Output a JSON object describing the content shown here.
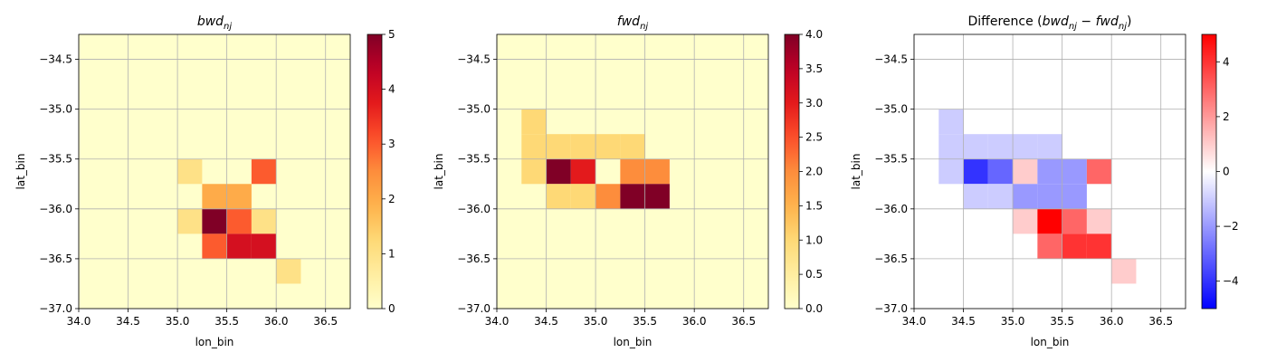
{
  "chart_data": [
    {
      "type": "heatmap",
      "title": "bwd_nj",
      "title_main": "bwd",
      "title_sub": "nj",
      "title_suffix": "",
      "xlabel": "lon_bin",
      "ylabel": "lat_bin",
      "xlim": [
        34.0,
        36.75
      ],
      "ylim": [
        -37.0,
        -34.25
      ],
      "bin_size": 0.25,
      "xticks": [
        34.0,
        34.5,
        35.0,
        35.5,
        36.0,
        36.5
      ],
      "xtick_labels": [
        "34.0",
        "34.5",
        "35.0",
        "35.5",
        "36.0",
        "36.5"
      ],
      "yticks": [
        -34.5,
        -35.0,
        -35.5,
        -36.0,
        -36.5,
        -37.0
      ],
      "ytick_labels": [
        "−34.5",
        "−35.0",
        "−35.5",
        "−36.0",
        "−36.5",
        "−37.0"
      ],
      "colormap": "YlOrRd",
      "vmin": 0,
      "vmax": 5,
      "colorbar_ticks": [
        0,
        1,
        2,
        3,
        4,
        5
      ],
      "colorbar_tick_labels": [
        "0",
        "1",
        "2",
        "3",
        "4",
        "5"
      ],
      "grid": true,
      "background_value": 0,
      "cells": [
        {
          "lon": 35.0,
          "lat": -35.5,
          "value": 1
        },
        {
          "lon": 35.75,
          "lat": -35.5,
          "value": 3
        },
        {
          "lon": 35.25,
          "lat": -35.75,
          "value": 2
        },
        {
          "lon": 35.5,
          "lat": -35.75,
          "value": 2
        },
        {
          "lon": 35.0,
          "lat": -36.0,
          "value": 1
        },
        {
          "lon": 35.25,
          "lat": -36.0,
          "value": 5
        },
        {
          "lon": 35.5,
          "lat": -36.0,
          "value": 3
        },
        {
          "lon": 35.75,
          "lat": -36.0,
          "value": 1
        },
        {
          "lon": 35.25,
          "lat": -36.25,
          "value": 3
        },
        {
          "lon": 35.5,
          "lat": -36.25,
          "value": 4
        },
        {
          "lon": 35.75,
          "lat": -36.25,
          "value": 4
        },
        {
          "lon": 36.0,
          "lat": -36.5,
          "value": 1
        }
      ]
    },
    {
      "type": "heatmap",
      "title": "fwd_nj",
      "title_main": "fwd",
      "title_sub": "nj",
      "title_suffix": "",
      "xlabel": "lon_bin",
      "ylabel": "lat_bin",
      "xlim": [
        34.0,
        36.75
      ],
      "ylim": [
        -37.0,
        -34.25
      ],
      "bin_size": 0.25,
      "xticks": [
        34.0,
        34.5,
        35.0,
        35.5,
        36.0,
        36.5
      ],
      "xtick_labels": [
        "34.0",
        "34.5",
        "35.0",
        "35.5",
        "36.0",
        "36.5"
      ],
      "yticks": [
        -34.5,
        -35.0,
        -35.5,
        -36.0,
        -36.5,
        -37.0
      ],
      "ytick_labels": [
        "−34.5",
        "−35.0",
        "−35.5",
        "−36.0",
        "−36.5",
        "−37.0"
      ],
      "colormap": "YlOrRd",
      "vmin": 0,
      "vmax": 4,
      "colorbar_ticks": [
        0,
        0.5,
        1,
        1.5,
        2,
        2.5,
        3,
        3.5,
        4
      ],
      "colorbar_tick_labels": [
        "0.0",
        "0.5",
        "1.0",
        "1.5",
        "2.0",
        "2.5",
        "3.0",
        "3.5",
        "4.0"
      ],
      "grid": true,
      "background_value": 0,
      "cells": [
        {
          "lon": 34.25,
          "lat": -35.0,
          "value": 1
        },
        {
          "lon": 34.25,
          "lat": -35.25,
          "value": 1
        },
        {
          "lon": 34.5,
          "lat": -35.25,
          "value": 1
        },
        {
          "lon": 34.75,
          "lat": -35.25,
          "value": 1
        },
        {
          "lon": 35.0,
          "lat": -35.25,
          "value": 1
        },
        {
          "lon": 35.25,
          "lat": -35.25,
          "value": 1
        },
        {
          "lon": 34.25,
          "lat": -35.5,
          "value": 1
        },
        {
          "lon": 34.5,
          "lat": -35.5,
          "value": 4
        },
        {
          "lon": 34.75,
          "lat": -35.5,
          "value": 3
        },
        {
          "lon": 35.25,
          "lat": -35.5,
          "value": 2
        },
        {
          "lon": 35.5,
          "lat": -35.5,
          "value": 2
        },
        {
          "lon": 34.5,
          "lat": -35.75,
          "value": 1
        },
        {
          "lon": 34.75,
          "lat": -35.75,
          "value": 1
        },
        {
          "lon": 35.0,
          "lat": -35.75,
          "value": 2
        },
        {
          "lon": 35.25,
          "lat": -35.75,
          "value": 4
        },
        {
          "lon": 35.5,
          "lat": -35.75,
          "value": 4
        }
      ]
    },
    {
      "type": "heatmap",
      "title": "Difference (bwd_nj − fwd_nj)",
      "title_main": "Difference (",
      "title_sub": "",
      "title_suffix": "",
      "xlabel": "lon_bin",
      "ylabel": "lat_bin",
      "xlim": [
        34.0,
        36.75
      ],
      "ylim": [
        -37.0,
        -34.25
      ],
      "bin_size": 0.25,
      "xticks": [
        34.0,
        34.5,
        35.0,
        35.5,
        36.0,
        36.5
      ],
      "xtick_labels": [
        "34.0",
        "34.5",
        "35.0",
        "35.5",
        "36.0",
        "36.5"
      ],
      "yticks": [
        -34.5,
        -35.0,
        -35.5,
        -36.0,
        -36.5,
        -37.0
      ],
      "ytick_labels": [
        "−34.5",
        "−35.0",
        "−35.5",
        "−36.0",
        "−36.5",
        "−37.0"
      ],
      "colormap": "bwr",
      "vmin": -5,
      "vmax": 5,
      "colorbar_ticks": [
        -4,
        -2,
        0,
        2,
        4
      ],
      "colorbar_tick_labels": [
        "−4",
        "−2",
        "0",
        "2",
        "4"
      ],
      "grid": true,
      "background_value": 0,
      "cells": [
        {
          "lon": 34.25,
          "lat": -35.0,
          "value": -1
        },
        {
          "lon": 34.25,
          "lat": -35.25,
          "value": -1
        },
        {
          "lon": 34.5,
          "lat": -35.25,
          "value": -1
        },
        {
          "lon": 34.75,
          "lat": -35.25,
          "value": -1
        },
        {
          "lon": 35.0,
          "lat": -35.25,
          "value": -1
        },
        {
          "lon": 35.25,
          "lat": -35.25,
          "value": -1
        },
        {
          "lon": 34.25,
          "lat": -35.5,
          "value": -1
        },
        {
          "lon": 34.5,
          "lat": -35.5,
          "value": -4
        },
        {
          "lon": 34.75,
          "lat": -35.5,
          "value": -3
        },
        {
          "lon": 35.0,
          "lat": -35.5,
          "value": 1
        },
        {
          "lon": 35.25,
          "lat": -35.5,
          "value": -2
        },
        {
          "lon": 35.5,
          "lat": -35.5,
          "value": -2
        },
        {
          "lon": 35.75,
          "lat": -35.5,
          "value": 3
        },
        {
          "lon": 34.5,
          "lat": -35.75,
          "value": -1
        },
        {
          "lon": 34.75,
          "lat": -35.75,
          "value": -1
        },
        {
          "lon": 35.0,
          "lat": -35.75,
          "value": -2
        },
        {
          "lon": 35.25,
          "lat": -35.75,
          "value": -2
        },
        {
          "lon": 35.5,
          "lat": -35.75,
          "value": -2
        },
        {
          "lon": 35.0,
          "lat": -36.0,
          "value": 1
        },
        {
          "lon": 35.25,
          "lat": -36.0,
          "value": 5
        },
        {
          "lon": 35.5,
          "lat": -36.0,
          "value": 3
        },
        {
          "lon": 35.75,
          "lat": -36.0,
          "value": 1
        },
        {
          "lon": 35.25,
          "lat": -36.25,
          "value": 3
        },
        {
          "lon": 35.5,
          "lat": -36.25,
          "value": 4
        },
        {
          "lon": 35.75,
          "lat": -36.25,
          "value": 4
        },
        {
          "lon": 36.0,
          "lat": -36.5,
          "value": 1
        }
      ]
    }
  ]
}
